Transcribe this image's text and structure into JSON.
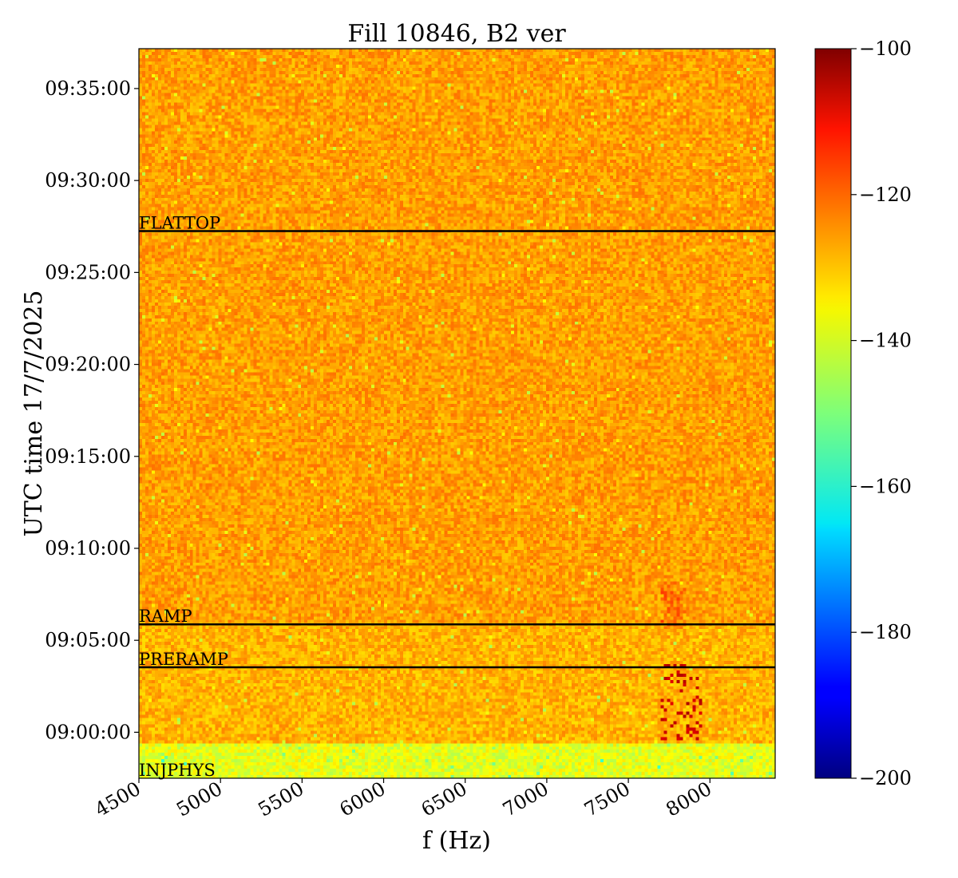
{
  "chart_data": {
    "type": "heatmap",
    "title": "Fill 10846, B2 ver",
    "xlabel": "f (Hz)",
    "ylabel": "UTC time 17/7/2025",
    "xlim": [
      4500,
      8400
    ],
    "x_ticks": [
      4500,
      5000,
      5500,
      6000,
      6500,
      7000,
      7500,
      8000
    ],
    "x_tick_labels": [
      "4500",
      "5000",
      "5500",
      "6000",
      "6500",
      "7000",
      "7500",
      "8000"
    ],
    "y_range_minutes": [
      "08:57:30",
      "09:37:10"
    ],
    "y_ticks": [
      "09:00:00",
      "09:05:00",
      "09:10:00",
      "09:15:00",
      "09:20:00",
      "09:25:00",
      "09:30:00",
      "09:35:00"
    ],
    "colorbar": {
      "colormap": "jet",
      "min": -200,
      "max": -100,
      "ticks": [
        -100,
        -120,
        -140,
        -160,
        -180,
        -200
      ],
      "tick_labels": [
        "−100",
        "−120",
        "−140",
        "−160",
        "−180",
        "−200"
      ]
    },
    "background_level": -128,
    "injection_level": -140,
    "events": [
      {
        "label": "FLATTOP",
        "time": "09:27:15"
      },
      {
        "label": "RAMP",
        "time": "09:05:52"
      },
      {
        "label": "PRERAMP",
        "time": "09:03:32"
      },
      {
        "label": "INJPHYS",
        "time": "08:57:30"
      }
    ],
    "features": [
      {
        "f_range": [
          7700,
          7950
        ],
        "time_range": [
          "08:59:30",
          "09:03:40"
        ],
        "level": -110
      }
    ]
  }
}
